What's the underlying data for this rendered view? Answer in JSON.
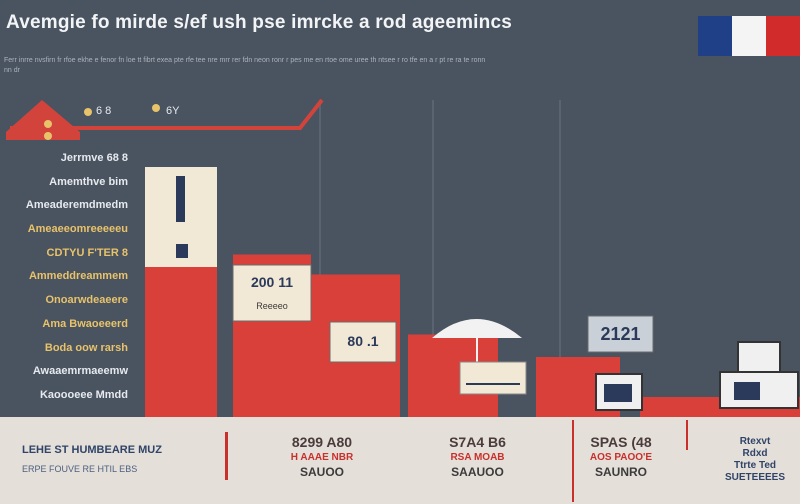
{
  "title": "Avemgie fo mirde s/ef ush pse imrcke a rod ageemincs",
  "subtitle": "Ferr inrre nvsfirn fr rfoe ekhe e fenor fn loe tt fibrt exea pte rfe tee nre mrr rer fdn neon ronr r pes me en rtoe ome uree th ntsee r ro tfe en a r pt re ra te ronn nn dr",
  "flag_colors": [
    "#1f3f86",
    "#f4f4f4",
    "#d22b2b"
  ],
  "colors": {
    "bar": "#d9403a",
    "line": "#d2433c",
    "card": "#f1e8d5",
    "card_dark": "#2b3a5a",
    "footer_bg": "#e5dfd9",
    "accent_red": "#c9302c"
  },
  "y_labels": [
    {
      "text": "Jerrmve 68 8",
      "color": "light"
    },
    {
      "text": "Amemthve bim",
      "color": "light"
    },
    {
      "text": "Ameaderemdmedm",
      "color": "light"
    },
    {
      "text": "Ameaeeomreeeeeu",
      "color": "yellow"
    },
    {
      "text": "CDTYU F'TER 8",
      "color": "yellow"
    },
    {
      "text": "Ammeddreammem",
      "color": "yellow"
    },
    {
      "text": "Onoarwdeaeere",
      "color": "yellow"
    },
    {
      "text": "Ama Bwaoeeerd",
      "color": "yellow"
    },
    {
      "text": "Boda oow rarsh",
      "color": "yellow"
    },
    {
      "text": "Awaaemrmaeemw",
      "color": "light"
    },
    {
      "text": "Kaoooeee Mmdd",
      "color": "light"
    }
  ],
  "legend_marks": [
    {
      "text": "6 8",
      "icon": "house-icon"
    },
    {
      "text": "6Y",
      "icon": "pin-icon"
    }
  ],
  "chart_data": {
    "type": "bar",
    "title": "Avemgie fo mirde s/ef ush pse imrcke a rod ageemincs",
    "values": [
      100,
      65,
      57,
      33,
      24,
      8,
      8
    ],
    "card_labels": [
      "",
      "200 11",
      "80 .1",
      "",
      "2121",
      "",
      ""
    ],
    "card_sublabels": [
      "",
      "Reeeeo",
      "",
      "",
      "",
      "",
      ""
    ],
    "ylim": [
      0,
      100
    ],
    "grid": false,
    "legend": "none"
  },
  "footer": {
    "left_title": "LEHE ST HUMBEARE MUZ",
    "left_sub": "ERPE FOUVE RE HTIL EBS",
    "columns": [
      {
        "big": "8299 A80",
        "red": "H AAAE NBR",
        "small": "SAUOO"
      },
      {
        "big": "S7A4 B6",
        "red": "RSA MOAB",
        "small": "SAAUOO"
      },
      {
        "big": "SPAS (48",
        "red": "AOS PAOO'E",
        "small": "SAUNRO"
      }
    ],
    "right_lines": [
      "Rtexvt",
      "Rdxd",
      "Ttrte Ted",
      "SUETEEEES"
    ]
  }
}
